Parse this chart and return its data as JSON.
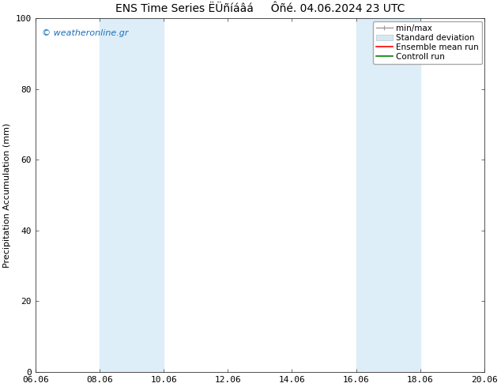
{
  "title": "ENS Time Series ËÜñíáâá     Ôñé. 04.06.2024 23 UTC",
  "ylabel": "Precipitation Accumulation (mm)",
  "ylim": [
    0,
    100
  ],
  "x_ticks": [
    "06.06",
    "08.06",
    "10.06",
    "12.06",
    "14.06",
    "16.06",
    "18.06",
    "20.06"
  ],
  "x_tick_values": [
    0,
    2,
    4,
    6,
    8,
    10,
    12,
    14
  ],
  "shaded_bands": [
    {
      "xmin": 2.0,
      "xmax": 3.0,
      "xmin2": 3.0,
      "xmax2": 4.0
    },
    {
      "xmin": 10.0,
      "xmax": 11.0,
      "xmin2": 11.0,
      "xmax2": 12.0
    }
  ],
  "shaded_color": "#ddeef8",
  "shaded_color2": "#e8f4fb",
  "watermark_text": "© weatheronline.gr",
  "watermark_color": "#1a6fba",
  "bg_color": "#ffffff",
  "tick_label_fontsize": 8,
  "axis_label_fontsize": 8,
  "title_fontsize": 10
}
